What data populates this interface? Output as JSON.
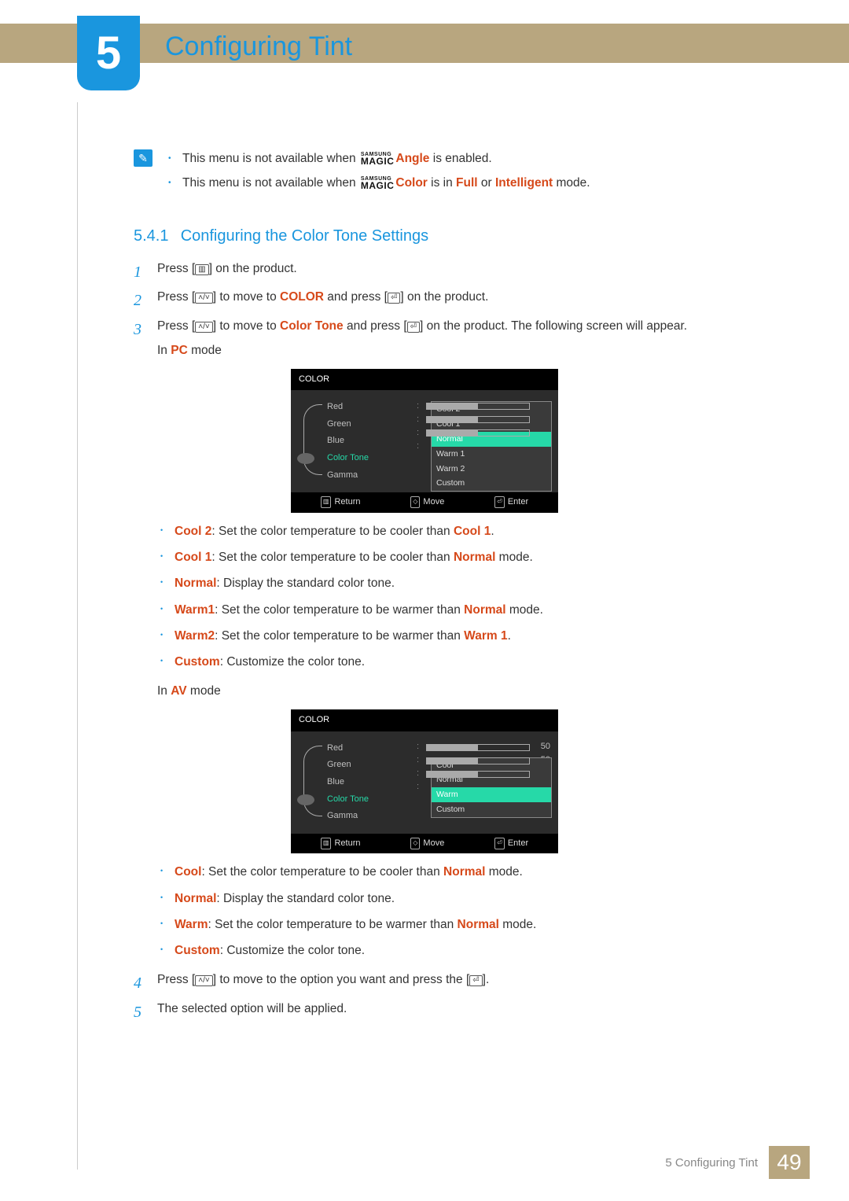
{
  "page": {
    "chapter_num": "5",
    "chapter_title": "Configuring Tint",
    "footer_text": "5 Configuring Tint",
    "page_number": "49",
    "colors": {
      "accent_blue": "#1a96de",
      "accent_red": "#d6491a",
      "bar_tan": "#b8a67f",
      "osd_highlight": "#26d9a8"
    }
  },
  "notes": {
    "line1_pre": "This menu is not available when ",
    "line1_magic_suffix": "Angle",
    "line1_post": " is enabled.",
    "line2_pre": "This menu is not available when ",
    "line2_magic_suffix": "Color",
    "line2_mid": " is in ",
    "line2_term1": "Full",
    "line2_mid2": " or ",
    "line2_term2": "Intelligent",
    "line2_post": " mode.",
    "magic_top": "SAMSUNG",
    "magic_bot": "MAGIC"
  },
  "section": {
    "num": "5.4.1",
    "title": "Configuring the Color Tone Settings"
  },
  "steps": {
    "s1_a": "Press [",
    "s1_icon": "▥",
    "s1_b": "] on the product.",
    "s2_a": "Press [",
    "s2_icon1": "˄/˅",
    "s2_b": "] to move to ",
    "s2_term": "COLOR",
    "s2_c": " and press [",
    "s2_icon2": "⏎",
    "s2_d": "] on the product.",
    "s3_a": "Press [",
    "s3_icon1": "˄/˅",
    "s3_b": "] to move to ",
    "s3_term": "Color Tone",
    "s3_c": " and press [",
    "s3_icon2": "⏎",
    "s3_d": "] on the product. The following screen will appear.",
    "s3_sub_pre": "In ",
    "s3_sub_term": "PC",
    "s3_sub_post": " mode",
    "s3b_sub_pre": "In ",
    "s3b_sub_term": "AV",
    "s3b_sub_post": " mode",
    "s4_a": "Press [",
    "s4_icon1": "˄/˅",
    "s4_b": "] to move to the option you want and press the [",
    "s4_icon2": "⏎",
    "s4_c": "].",
    "s5": "The selected option will be applied."
  },
  "osd": {
    "header": "COLOR",
    "items": [
      "Red",
      "Green",
      "Blue",
      "Color Tone",
      "Gamma"
    ],
    "slider_value": "50",
    "slider_fill_pct": 50,
    "pc_options": [
      "Cool 2",
      "Cool 1",
      "Normal",
      "Warm 1",
      "Warm 2",
      "Custom"
    ],
    "pc_selected_index": 2,
    "av_options": [
      "Cool",
      "Normal",
      "Warm",
      "Custom"
    ],
    "av_selected_index": 2,
    "footer_return": "Return",
    "footer_move": "Move",
    "footer_enter": "Enter",
    "footer_return_ic": "▥",
    "footer_move_ic": "◇",
    "footer_enter_ic": "⏎"
  },
  "pc_bullets": [
    {
      "term": "Cool 2",
      "pre": ": Set the color temperature to be cooler than ",
      "term2": "Cool 1",
      "post": "."
    },
    {
      "term": "Cool 1",
      "pre": ": Set the color temperature to be cooler than ",
      "term2": "Normal",
      "post": " mode."
    },
    {
      "term": "Normal",
      "pre": ": Display the standard color tone.",
      "term2": "",
      "post": ""
    },
    {
      "term": "Warm1",
      "pre": ": Set the color temperature to be warmer than ",
      "term2": "Normal",
      "post": " mode."
    },
    {
      "term": "Warm2",
      "pre": ": Set the color temperature to be warmer than ",
      "term2": "Warm 1",
      "post": "."
    },
    {
      "term": "Custom",
      "pre": ": Customize the color tone.",
      "term2": "",
      "post": ""
    }
  ],
  "av_bullets": [
    {
      "term": "Cool",
      "pre": ": Set the color temperature to be cooler than ",
      "term2": "Normal",
      "post": " mode."
    },
    {
      "term": "Normal",
      "pre": ": Display the standard color tone.",
      "term2": "",
      "post": ""
    },
    {
      "term": "Warm",
      "pre": ": Set the color temperature to be warmer than ",
      "term2": "Normal",
      "post": " mode."
    },
    {
      "term": "Custom",
      "pre": ": Customize the color tone.",
      "term2": "",
      "post": ""
    }
  ]
}
